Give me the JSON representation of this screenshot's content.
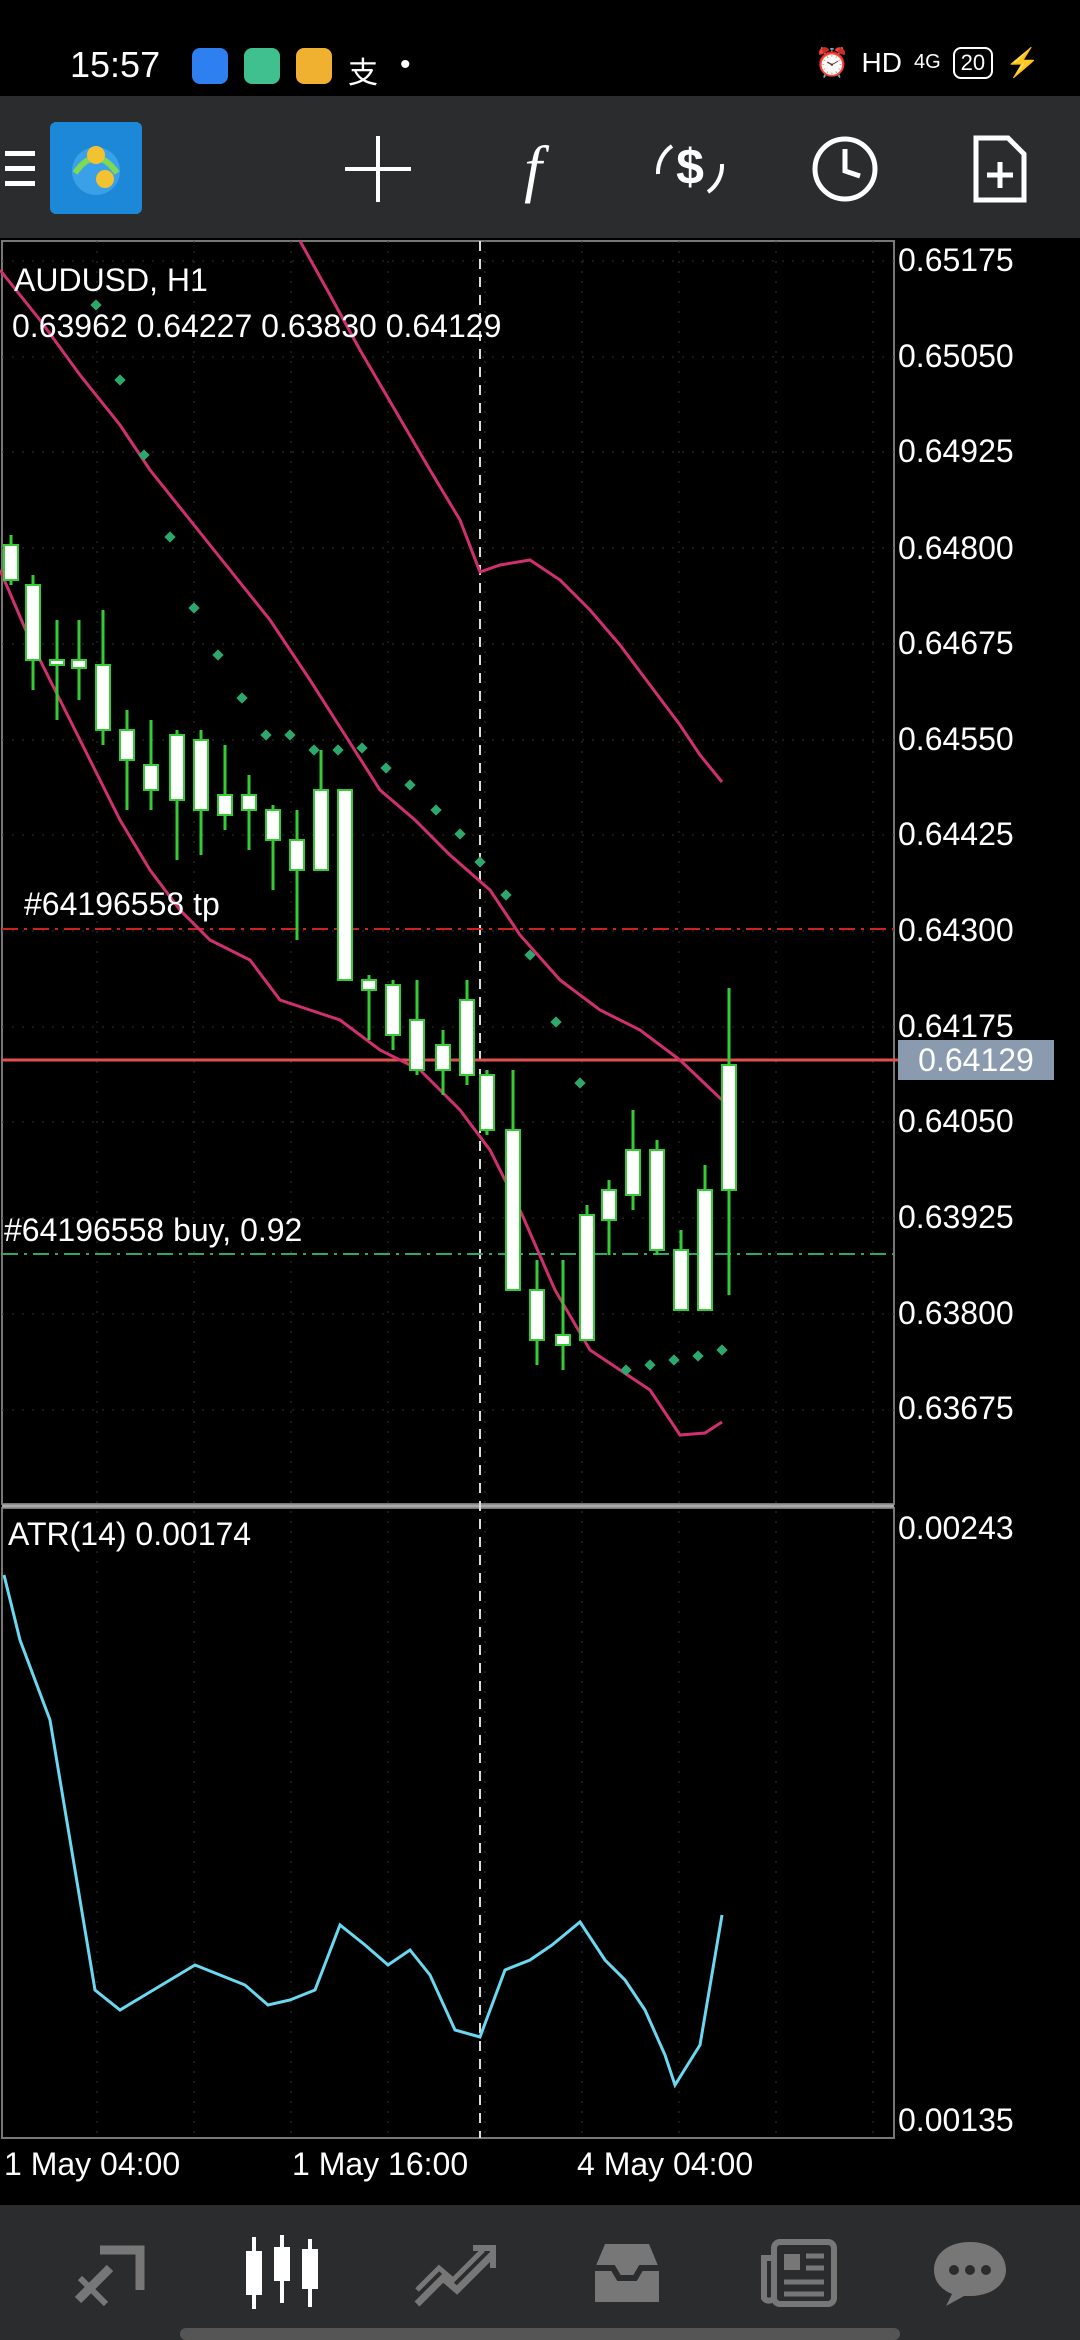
{
  "status_bar": {
    "time": "15:57",
    "quality": "HD",
    "network": "4G",
    "battery": "20"
  },
  "toolbar": {
    "icons": [
      "menu-icon",
      "metatrader-logo",
      "crosshair-icon",
      "indicators-icon",
      "trade-icon",
      "timeframe-icon",
      "new-order-icon"
    ],
    "indicators_glyph": "f"
  },
  "chart": {
    "symbol_label": "AUDUSD, H1",
    "ohlc_label": "0.63962 0.64227 0.63830 0.64129",
    "price_axis": [
      "0.65175",
      "0.65050",
      "0.64925",
      "0.64800",
      "0.64675",
      "0.64550",
      "0.64425",
      "0.64300",
      "0.64175",
      "0.64050",
      "0.63925",
      "0.63800",
      "0.63675"
    ],
    "current_price": "0.64129",
    "tp_label": "#64196558 tp",
    "buy_label": "#64196558 buy, 0.92",
    "atr_label": "ATR(14) 0.00174",
    "atr_axis": [
      "0.00243",
      "0.00135"
    ],
    "time_axis": [
      "1 May 04:00",
      "1 May 16:00",
      "4 May 04:00"
    ],
    "colors": {
      "bull_candle": "#ffffff",
      "wick": "#33cc33",
      "envelope": "#d0306f",
      "sar_dots": "#2ea86a",
      "tp_line": "#cc2222",
      "buy_line": "#2ea86a",
      "price_line": "#e05050",
      "atr_line": "#6ad8f0"
    }
  },
  "bottom_nav": {
    "items": [
      "quotes-icon",
      "chart-icon",
      "trade-icon",
      "history-icon",
      "news-icon",
      "chat-icon"
    ],
    "active": "chart-icon"
  }
}
